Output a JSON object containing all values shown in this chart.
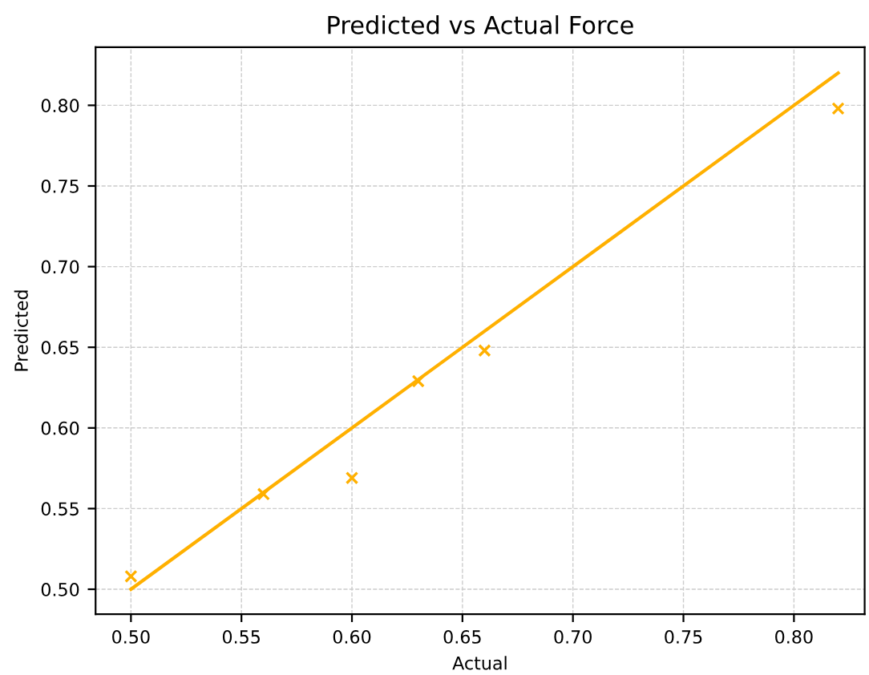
{
  "chart_data": {
    "type": "scatter",
    "title": "Predicted vs Actual Force",
    "xlabel": "Actual",
    "ylabel": "Predicted",
    "series": [
      {
        "color": "#ffb000",
        "marker": "cross",
        "x": [
          0.5,
          0.56,
          0.6,
          0.63,
          0.66,
          0.82
        ],
        "values": [
          0.508,
          0.559,
          0.569,
          0.629,
          0.648,
          0.798
        ]
      },
      {
        "type": "line",
        "color": "#ffb000",
        "marker": "none",
        "line_style": "solid",
        "x": [
          0.5,
          0.82
        ],
        "values": [
          0.5,
          0.82
        ]
      }
    ],
    "xlim": [
      0.484,
      0.832
    ],
    "ylim": [
      0.4845,
      0.836
    ],
    "xticks": [
      {
        "value": 0.5,
        "label": "0.50"
      },
      {
        "value": 0.55,
        "label": "0.55"
      },
      {
        "value": 0.6,
        "label": "0.60"
      },
      {
        "value": 0.65,
        "label": "0.65"
      },
      {
        "value": 0.7,
        "label": "0.70"
      },
      {
        "value": 0.75,
        "label": "0.75"
      },
      {
        "value": 0.8,
        "label": "0.80"
      }
    ],
    "yticks": [
      {
        "value": 0.5,
        "label": "0.50"
      },
      {
        "value": 0.55,
        "label": "0.55"
      },
      {
        "value": 0.6,
        "label": "0.60"
      },
      {
        "value": 0.65,
        "label": "0.65"
      },
      {
        "value": 0.7,
        "label": "0.70"
      },
      {
        "value": 0.75,
        "label": "0.75"
      },
      {
        "value": 0.8,
        "label": "0.80"
      }
    ],
    "grid": true
  }
}
